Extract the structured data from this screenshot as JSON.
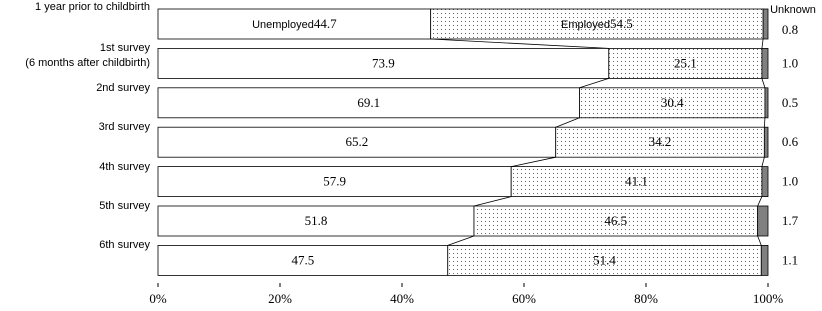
{
  "chart_data": {
    "type": "stacked-bar-horizontal",
    "categories": [
      "1 year prior to childbirth",
      "1st survey\n(6 months after childbirth)",
      "2nd survey",
      "3rd survey",
      "4th survey",
      "5th survey",
      "6th survey"
    ],
    "series": [
      {
        "name": "Unemployed",
        "color": "#ffffff",
        "values": [
          44.7,
          73.9,
          69.1,
          65.2,
          57.9,
          51.8,
          47.5
        ]
      },
      {
        "name": "Employed",
        "color": "#666666",
        "values": [
          54.5,
          25.1,
          30.4,
          34.2,
          41.1,
          46.5,
          51.4
        ]
      },
      {
        "name": "Unknown",
        "color": "#808080",
        "values": [
          0.8,
          1.0,
          0.5,
          0.6,
          1.0,
          1.7,
          1.1
        ],
        "value_labels": [
          "0.8",
          "1.0",
          "0.5",
          "0.6",
          "1.0",
          "1.7",
          "1.1"
        ]
      }
    ],
    "xlim": [
      0,
      100
    ],
    "xticks": [
      {
        "value": 0,
        "label": "0%"
      },
      {
        "value": 20,
        "label": "20%"
      },
      {
        "value": 40,
        "label": "40%"
      },
      {
        "value": 60,
        "label": "60%"
      },
      {
        "value": 80,
        "label": "80%"
      },
      {
        "value": 100,
        "label": "100%"
      }
    ]
  }
}
